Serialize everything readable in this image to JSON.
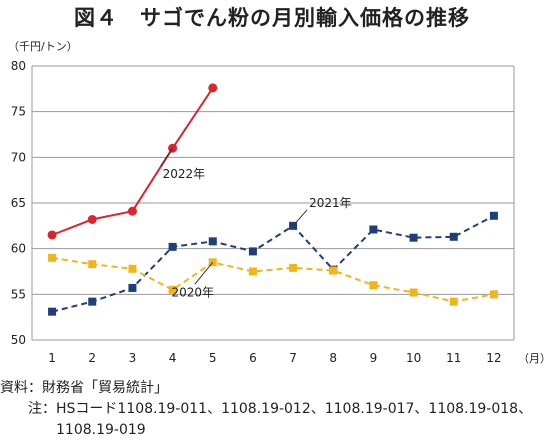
{
  "title": "図４　サゴでん粉の月別輸入価格の推移",
  "y_unit": "（千円/トン）",
  "x_unit": "（月）",
  "notes": {
    "source_label": "資料：",
    "source_text": "財務省「貿易統計」",
    "note_label": "注：",
    "note_text_line1": "HSコード1108.19-011、1108.19-012、1108.19-017、1108.19-018、",
    "note_text_line2": "1108.19-019"
  },
  "chart_data": {
    "type": "line",
    "x": [
      1,
      2,
      3,
      4,
      5,
      6,
      7,
      8,
      9,
      10,
      11,
      12
    ],
    "ylim": [
      50,
      80
    ],
    "yticks": [
      50,
      55,
      60,
      65,
      70,
      75,
      80
    ],
    "grid": true,
    "series": [
      {
        "name": "2022年",
        "color": "#d9262c",
        "style": "solid",
        "marker": "circle",
        "values": [
          61.5,
          63.2,
          64.1,
          71.0,
          77.6,
          null,
          null,
          null,
          null,
          null,
          null,
          null
        ]
      },
      {
        "name": "2021年",
        "color": "#1f3f7a",
        "style": "dashed",
        "marker": "square",
        "values": [
          53.1,
          54.2,
          55.7,
          60.2,
          60.8,
          59.7,
          62.5,
          57.7,
          62.1,
          61.2,
          61.3,
          63.6
        ]
      },
      {
        "name": "2020年",
        "color": "#f2b41b",
        "style": "dashed",
        "marker": "square",
        "values": [
          59.0,
          58.3,
          57.8,
          55.5,
          58.5,
          57.5,
          57.9,
          57.6,
          56.0,
          55.2,
          54.2,
          55.0
        ]
      }
    ]
  }
}
